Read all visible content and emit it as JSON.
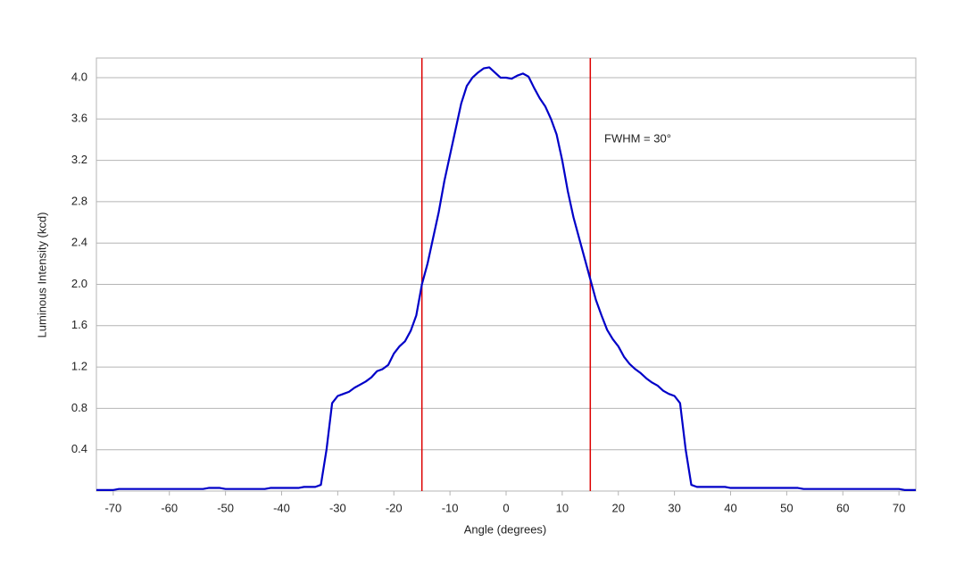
{
  "chart_data": {
    "type": "line",
    "x_label": "Angle (degrees)",
    "y_label": "Luminous Intensity (kcd)",
    "annotation": "FWHM = 30°",
    "x": [
      -73,
      -72,
      -71,
      -70,
      -69,
      -68,
      -67,
      -66,
      -65,
      -64,
      -63,
      -62,
      -61,
      -60,
      -59,
      -58,
      -57,
      -56,
      -55,
      -54,
      -53,
      -52,
      -51,
      -50,
      -49,
      -48,
      -47,
      -46,
      -45,
      -44,
      -43,
      -42,
      -41,
      -40,
      -39,
      -38,
      -37,
      -36,
      -35,
      -34,
      -33,
      -32,
      -31,
      -30,
      -29,
      -28,
      -27,
      -26,
      -25,
      -24,
      -23,
      -22,
      -21,
      -20,
      -19,
      -18,
      -17,
      -16,
      -15,
      -14,
      -13,
      -12,
      -11,
      -10,
      -9,
      -8,
      -7,
      -6,
      -5,
      -4,
      -3,
      -2,
      -1,
      0,
      1,
      2,
      3,
      4,
      5,
      6,
      7,
      8,
      9,
      10,
      11,
      12,
      13,
      14,
      15,
      16,
      17,
      18,
      19,
      20,
      21,
      22,
      23,
      24,
      25,
      26,
      27,
      28,
      29,
      30,
      31,
      32,
      33,
      34,
      35,
      36,
      37,
      38,
      39,
      40,
      41,
      42,
      43,
      44,
      45,
      46,
      47,
      48,
      49,
      50,
      51,
      52,
      53,
      54,
      55,
      56,
      57,
      58,
      59,
      60,
      61,
      62,
      63,
      64,
      65,
      66,
      67,
      68,
      69,
      70,
      71,
      72,
      73
    ],
    "series": [
      {
        "color": "#0000c8",
        "values": [
          0.01,
          0.01,
          0.01,
          0.01,
          0.02,
          0.02,
          0.02,
          0.02,
          0.02,
          0.02,
          0.02,
          0.02,
          0.02,
          0.02,
          0.02,
          0.02,
          0.02,
          0.02,
          0.02,
          0.02,
          0.03,
          0.03,
          0.03,
          0.02,
          0.02,
          0.02,
          0.02,
          0.02,
          0.02,
          0.02,
          0.02,
          0.03,
          0.03,
          0.03,
          0.03,
          0.03,
          0.03,
          0.04,
          0.04,
          0.04,
          0.06,
          0.4,
          0.85,
          0.92,
          0.94,
          0.96,
          1.0,
          1.03,
          1.06,
          1.1,
          1.16,
          1.18,
          1.22,
          1.33,
          1.4,
          1.45,
          1.55,
          1.7,
          2.0,
          2.2,
          2.45,
          2.7,
          3.0,
          3.25,
          3.5,
          3.75,
          3.92,
          4.0,
          4.05,
          4.09,
          4.1,
          4.05,
          4.0,
          4.0,
          3.99,
          4.02,
          4.04,
          4.01,
          3.9,
          3.8,
          3.72,
          3.6,
          3.45,
          3.2,
          2.9,
          2.65,
          2.45,
          2.25,
          2.05,
          1.85,
          1.7,
          1.56,
          1.47,
          1.4,
          1.3,
          1.23,
          1.18,
          1.14,
          1.09,
          1.05,
          1.02,
          0.97,
          0.94,
          0.92,
          0.85,
          0.4,
          0.06,
          0.04,
          0.04,
          0.04,
          0.04,
          0.04,
          0.04,
          0.03,
          0.03,
          0.03,
          0.03,
          0.03,
          0.03,
          0.03,
          0.03,
          0.03,
          0.03,
          0.03,
          0.03,
          0.03,
          0.02,
          0.02,
          0.02,
          0.02,
          0.02,
          0.02,
          0.02,
          0.02,
          0.02,
          0.02,
          0.02,
          0.02,
          0.02,
          0.02,
          0.02,
          0.02,
          0.02,
          0.02,
          0.01,
          0.01,
          0.01
        ]
      }
    ],
    "vlines": [
      -15,
      15
    ],
    "vline_color": "#dd0000",
    "xlim": [
      -73,
      73
    ],
    "xticks": [
      -70,
      -60,
      -50,
      -40,
      -30,
      -20,
      -10,
      0,
      10,
      20,
      30,
      40,
      50,
      60,
      70
    ],
    "ylim": [
      0,
      4.19
    ],
    "yticks": [
      0.4,
      0.8,
      1.2,
      1.6,
      {
        "value": 2,
        "label": "2.0"
      },
      2.4,
      2.8,
      3.2,
      3.6,
      {
        "value": 4,
        "label": "4.0"
      }
    ],
    "grid": true
  }
}
